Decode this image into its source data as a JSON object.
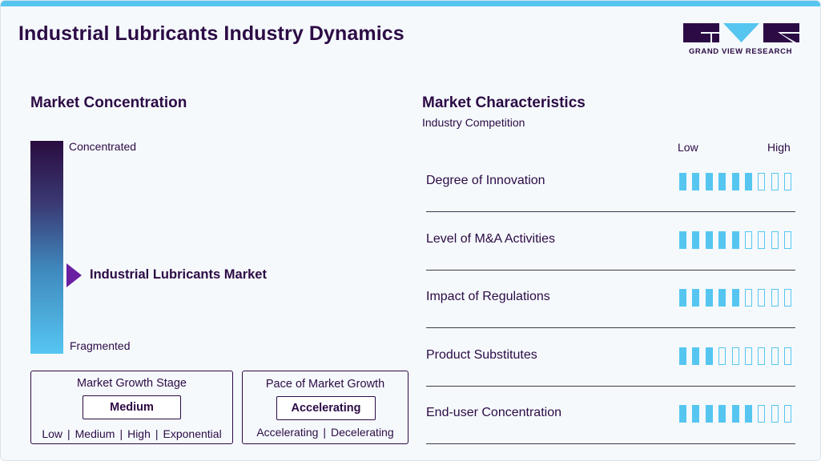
{
  "title": "Industrial Lubricants Industry Dynamics",
  "logo": {
    "text": "GRAND VIEW RESEARCH",
    "brand_color": "#2c0b45",
    "accent_color": "#56c5f0"
  },
  "concentration": {
    "heading": "Market Concentration",
    "top_label": "Concentrated",
    "bottom_label": "Fragmented",
    "marker_label": "Industrial Lubricants Market",
    "marker_color": "#6a1fa0",
    "marker_level": 0.37
  },
  "growth_stage": {
    "title": "Market Growth Stage",
    "value": "Medium",
    "scale": [
      "Low",
      "Medium",
      "High",
      "Exponential"
    ]
  },
  "growth_pace": {
    "title": "Pace of Market Growth",
    "value": "Accelerating",
    "scale": [
      "Accelerating",
      "Decelerating"
    ]
  },
  "characteristics": {
    "heading": "Market Characteristics",
    "subheading": "Industry Competition",
    "low_label": "Low",
    "high_label": "High",
    "total_segments": 9,
    "rows": [
      {
        "label": "Degree of Innovation",
        "filled": 6
      },
      {
        "label": "Level of M&A Activities",
        "filled": 5
      },
      {
        "label": "Impact of Regulations",
        "filled": 5
      },
      {
        "label": "Product Substitutes",
        "filled": 3
      },
      {
        "label": "End-user Concentration",
        "filled": 6
      }
    ]
  }
}
